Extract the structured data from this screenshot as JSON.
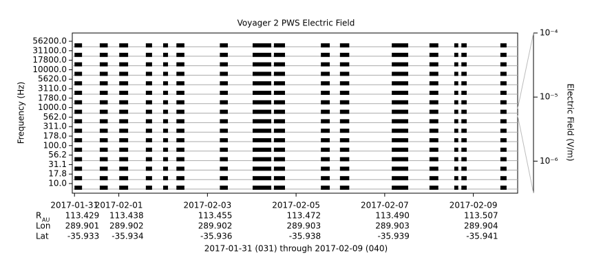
{
  "chart_data": {
    "type": "spectrogram",
    "title": "Voyager 2 PWS Electric Field",
    "y_label": "Frequency (Hz)",
    "categories": [
      "56200.0",
      "31100.0",
      "17800.0",
      "10000.0",
      "5620.0",
      "3110.0",
      "1780.0",
      "1000.0",
      "562.0",
      "311.0",
      "178.0",
      "100.0",
      "56.2",
      "31.1",
      "17.8",
      "10.0"
    ],
    "xlim": [
      -0.05,
      10
    ],
    "xticks": [
      {
        "value": 0,
        "label": "2017-01-31"
      },
      {
        "value": 1,
        "label": "2017-02-01"
      },
      {
        "value": 3,
        "label": "2017-02-03"
      },
      {
        "value": 5,
        "label": "2017-02-05"
      },
      {
        "value": 7,
        "label": "2017-02-07"
      },
      {
        "value": 9,
        "label": "2017-02-09"
      }
    ],
    "intervals": [
      [
        0,
        0.17
      ],
      [
        0.57,
        0.75
      ],
      [
        1.01,
        1.21
      ],
      [
        1.61,
        1.75
      ],
      [
        2.0,
        2.11
      ],
      [
        2.3,
        2.48
      ],
      [
        3.28,
        3.46
      ],
      [
        4.02,
        4.44
      ],
      [
        4.5,
        4.75
      ],
      [
        5.56,
        5.76
      ],
      [
        5.99,
        6.2
      ],
      [
        7.16,
        7.53
      ],
      [
        8.01,
        8.21
      ],
      [
        8.57,
        8.66
      ],
      [
        8.73,
        8.85
      ],
      [
        9.61,
        9.75
      ]
    ],
    "color": "#000000",
    "colorbar": {
      "label": "Electric Field (V/m)",
      "log": true,
      "ylim": [
        3.16e-07,
        0.0001
      ],
      "yticks": [
        {
          "value": 0.0001,
          "label": "10⁻⁴"
        },
        {
          "value": 1e-05,
          "label": "10⁻⁵"
        },
        {
          "value": 1e-06,
          "label": "10⁻⁶"
        }
      ]
    },
    "ephemeris": {
      "rows": [
        {
          "label": "R",
          "subscript": "AU",
          "values": [
            "113.429",
            "113.438",
            "113.455",
            "113.472",
            "113.490",
            "113.507"
          ]
        },
        {
          "label": "Lon",
          "values": [
            "289.901",
            "289.902",
            "289.902",
            "289.903",
            "289.903",
            "289.904"
          ]
        },
        {
          "label": "Lat",
          "values": [
            "-35.933",
            "-35.934",
            "-35.936",
            "-35.938",
            "-35.939",
            "-35.941"
          ]
        }
      ]
    },
    "footer": "2017-01-31 (031) through 2017-02-09 (040)"
  }
}
